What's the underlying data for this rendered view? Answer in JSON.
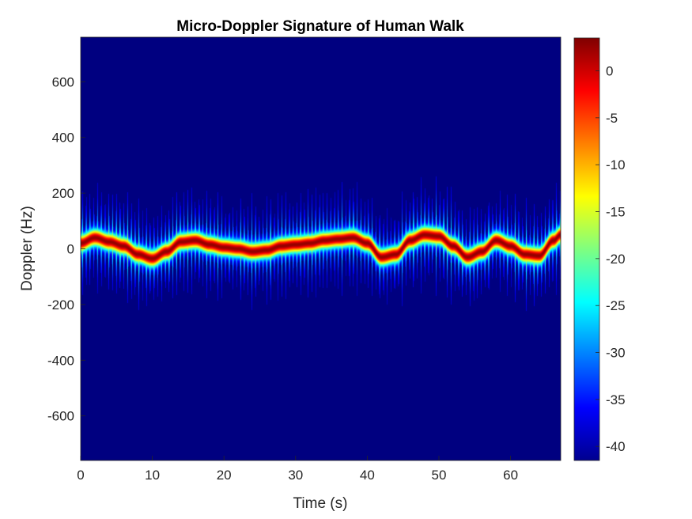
{
  "chart_data": {
    "type": "heatmap",
    "title": "Micro-Doppler Signature of Human Walk",
    "xlabel": "Time (s)",
    "ylabel": "Doppler (Hz)",
    "xlim": [
      0,
      67
    ],
    "ylim": [
      -760,
      760
    ],
    "xticks": [
      0,
      10,
      20,
      30,
      40,
      50,
      60
    ],
    "yticks": [
      -600,
      -400,
      -200,
      0,
      200,
      400,
      600
    ],
    "colormap": "jet",
    "background_color": "#00008f",
    "colorbar": {
      "limits": [
        -41.5,
        3.5
      ],
      "ticks": [
        -40,
        -35,
        -30,
        -25,
        -20,
        -15,
        -10,
        -5,
        0
      ]
    },
    "signature": {
      "torso_center_hz": [
        [
          0,
          20
        ],
        [
          2,
          40
        ],
        [
          4,
          25
        ],
        [
          6,
          10
        ],
        [
          8,
          -20
        ],
        [
          10,
          -35
        ],
        [
          12,
          -10
        ],
        [
          14,
          25
        ],
        [
          16,
          30
        ],
        [
          18,
          15
        ],
        [
          20,
          5
        ],
        [
          22,
          0
        ],
        [
          24,
          -10
        ],
        [
          26,
          -5
        ],
        [
          28,
          10
        ],
        [
          30,
          15
        ],
        [
          32,
          20
        ],
        [
          34,
          30
        ],
        [
          36,
          35
        ],
        [
          38,
          40
        ],
        [
          40,
          20
        ],
        [
          42,
          -30
        ],
        [
          44,
          -20
        ],
        [
          46,
          30
        ],
        [
          48,
          50
        ],
        [
          50,
          45
        ],
        [
          52,
          10
        ],
        [
          54,
          -30
        ],
        [
          56,
          -10
        ],
        [
          58,
          30
        ],
        [
          60,
          10
        ],
        [
          62,
          -20
        ],
        [
          64,
          -25
        ],
        [
          66,
          30
        ],
        [
          67,
          50
        ]
      ],
      "limb_spread_max_hz": 240,
      "peak_db": 3.5,
      "floor_db": -41.5
    }
  }
}
